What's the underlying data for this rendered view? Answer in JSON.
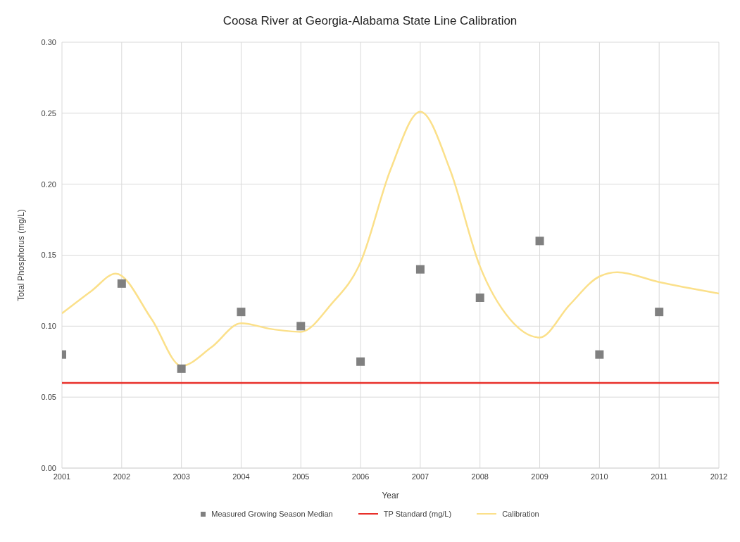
{
  "chart_data": {
    "type": "scatter",
    "title": "Coosa River at Georgia-Alabama State Line Calibration",
    "xlabel": "Year",
    "ylabel": "Total Phosphorus (mg/L)",
    "xlim": [
      2001,
      2012
    ],
    "xticks": [
      2001,
      2002,
      2003,
      2004,
      2005,
      2006,
      2007,
      2008,
      2009,
      2010,
      2011,
      2012
    ],
    "ylim": [
      0,
      0.3
    ],
    "yticks": [
      {
        "value": 0,
        "label": "0.00"
      },
      {
        "value": 0.05,
        "label": "0.05"
      },
      {
        "value": 0.1,
        "label": "0.10"
      },
      {
        "value": 0.15,
        "label": "0.15"
      },
      {
        "value": 0.2,
        "label": "0.20"
      },
      {
        "value": 0.25,
        "label": "0.25"
      },
      {
        "value": 0.3,
        "label": "0.30"
      }
    ],
    "grid": true,
    "legend": "bottom",
    "series": [
      {
        "name": "Measured Growing Season Median",
        "marker": "square",
        "color": "#808080",
        "x": [
          2001,
          2002,
          2003,
          2004,
          2005,
          2006,
          2007,
          2008,
          2009,
          2010,
          2011
        ],
        "values": [
          0.08,
          0.13,
          0.07,
          0.11,
          0.1,
          0.075,
          0.14,
          0.12,
          0.16,
          0.08,
          0.11
        ]
      },
      {
        "name": "TP Standard (mg/L)",
        "type": "line",
        "marker": "none",
        "color": "#e8302a",
        "x": [
          2001,
          2012
        ],
        "values": [
          0.06,
          0.06
        ]
      },
      {
        "name": "Calibration",
        "type": "line",
        "marker": "none",
        "color": "#fbe08a",
        "x": [
          2001,
          2001.5,
          2001.9,
          2002.5,
          2003,
          2003.5,
          2004,
          2004.5,
          2005,
          2005.5,
          2006,
          2006.5,
          2007,
          2007.5,
          2008,
          2008.5,
          2009,
          2009.5,
          2010,
          2010.3,
          2011,
          2012
        ],
        "values": [
          0.109,
          0.125,
          0.137,
          0.105,
          0.072,
          0.085,
          0.102,
          0.098,
          0.096,
          0.115,
          0.145,
          0.21,
          0.251,
          0.21,
          0.142,
          0.105,
          0.092,
          0.115,
          0.135,
          0.138,
          0.131,
          0.123
        ]
      }
    ]
  }
}
